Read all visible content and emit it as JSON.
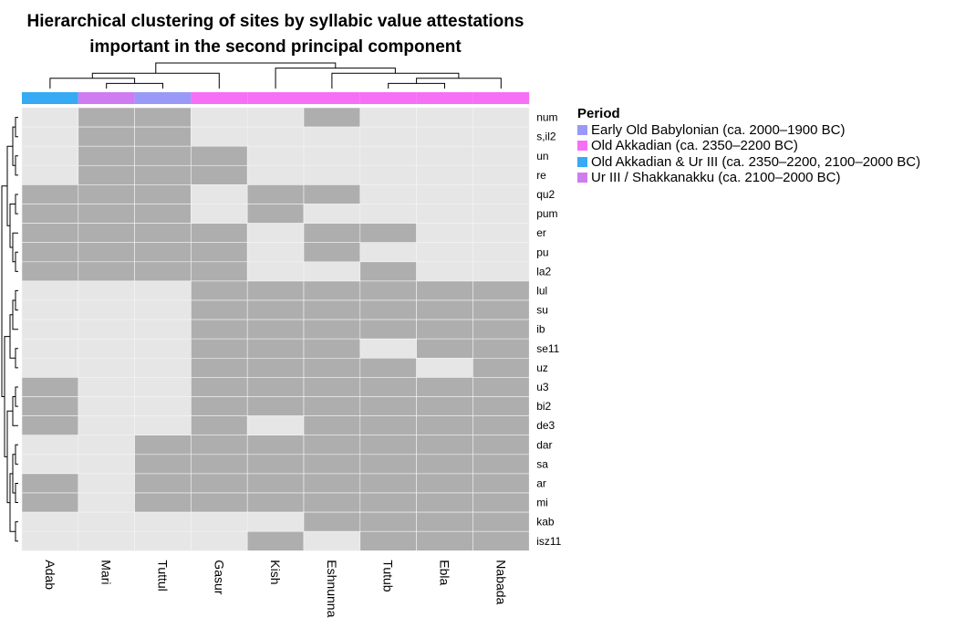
{
  "chart_data": {
    "type": "heatmap",
    "title": "Hierarchical clustering of sites by syllabic value attestations",
    "subtitle": "important in the second principal component",
    "columns": [
      "Adab",
      "Mari",
      "Tuttul",
      "Gasur",
      "Kish",
      "Eshnunna",
      "Tutub",
      "Ebla",
      "Nabada"
    ],
    "rows": [
      "num",
      "s,il2",
      "un",
      "re",
      "qu2",
      "pum",
      "er",
      "pu",
      "la2",
      "lul",
      "su",
      "ib",
      "se11",
      "uz",
      "u3",
      "bi2",
      "de3",
      "dar",
      "sa",
      "ar",
      "mi",
      "kab",
      "isz11"
    ],
    "values": [
      [
        0,
        1,
        1,
        0,
        0,
        1,
        0,
        0,
        0
      ],
      [
        0,
        1,
        1,
        0,
        0,
        0,
        0,
        0,
        0
      ],
      [
        0,
        1,
        1,
        1,
        0,
        0,
        0,
        0,
        0
      ],
      [
        0,
        1,
        1,
        1,
        0,
        0,
        0,
        0,
        0
      ],
      [
        1,
        1,
        1,
        0,
        1,
        1,
        0,
        0,
        0
      ],
      [
        1,
        1,
        1,
        0,
        1,
        0,
        0,
        0,
        0
      ],
      [
        1,
        1,
        1,
        1,
        0,
        1,
        1,
        0,
        0
      ],
      [
        1,
        1,
        1,
        1,
        0,
        1,
        0,
        0,
        0
      ],
      [
        1,
        1,
        1,
        1,
        0,
        0,
        1,
        0,
        0
      ],
      [
        0,
        0,
        0,
        1,
        1,
        1,
        1,
        1,
        1
      ],
      [
        0,
        0,
        0,
        1,
        1,
        1,
        1,
        1,
        1
      ],
      [
        0,
        0,
        0,
        1,
        1,
        1,
        1,
        1,
        1
      ],
      [
        0,
        0,
        0,
        1,
        1,
        1,
        0,
        1,
        1
      ],
      [
        0,
        0,
        0,
        1,
        1,
        1,
        1,
        0,
        1
      ],
      [
        1,
        0,
        0,
        1,
        1,
        1,
        1,
        1,
        1
      ],
      [
        1,
        0,
        0,
        1,
        1,
        1,
        1,
        1,
        1
      ],
      [
        1,
        0,
        0,
        1,
        0,
        1,
        1,
        1,
        1
      ],
      [
        0,
        0,
        1,
        1,
        1,
        1,
        1,
        1,
        1
      ],
      [
        0,
        0,
        1,
        1,
        1,
        1,
        1,
        1,
        1
      ],
      [
        1,
        0,
        1,
        1,
        1,
        1,
        1,
        1,
        1
      ],
      [
        1,
        0,
        1,
        1,
        1,
        1,
        1,
        1,
        1
      ],
      [
        0,
        0,
        0,
        0,
        0,
        1,
        1,
        1,
        1
      ],
      [
        0,
        0,
        0,
        0,
        1,
        0,
        1,
        1,
        1
      ]
    ],
    "cell_colors": {
      "0": "#e6e6e6",
      "1": "#aeaeae"
    },
    "column_period": [
      "Old Akkadian & Ur III (ca. 2350–2200, 2100–2000 BC)",
      "Ur III / Shakkanakku (ca. 2100–2000 BC)",
      "Early Old Babylonian (ca. 2000–1900 BC)",
      "Old Akkadian (ca. 2350–2200 BC)",
      "Old Akkadian (ca. 2350–2200 BC)",
      "Old Akkadian (ca. 2350–2200 BC)",
      "Old Akkadian (ca. 2350–2200 BC)",
      "Old Akkadian (ca. 2350–2200 BC)",
      "Old Akkadian (ca. 2350–2200 BC)"
    ],
    "legend": {
      "title": "Period",
      "position": "right",
      "items": [
        {
          "label": "Early Old Babylonian (ca. 2000–1900 BC)",
          "color": "#9999f7"
        },
        {
          "label": "Old Akkadian (ca. 2350–2200 BC)",
          "color": "#f570f5"
        },
        {
          "label": "Old Akkadian & Ur III (ca. 2350–2200, 2100–2000 BC)",
          "color": "#36aaf2"
        },
        {
          "label": "Ur III / Shakkanakku (ca. 2100–2000 BC)",
          "color": "#cf7cf2"
        }
      ]
    },
    "column_dendrogram": true,
    "row_dendrogram": true
  }
}
